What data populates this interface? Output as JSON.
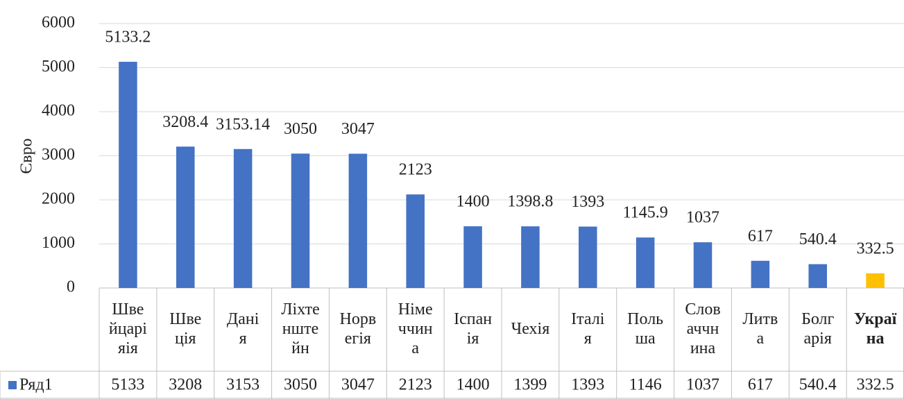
{
  "chart_data": {
    "type": "bar",
    "y_label": "Євро",
    "categories": [
      "Шве\nйцарі\nяія",
      "Шве\nція",
      "Дані\nя",
      "Ліхте\nнште\nйн",
      "Норв\nегія",
      "Німе\nччин\nа",
      "Іспан\nія",
      "Чехія",
      "Італі\nя",
      "Поль\nша",
      "Слов\nаччн\nина",
      "Литв\nа",
      "Болг\nарія",
      "Украї\nна"
    ],
    "series": [
      {
        "name": "Ряд1",
        "color": "#4472c4",
        "values": [
          5133.2,
          3208.4,
          3153.14,
          3050,
          3047,
          2123,
          1400,
          1398.8,
          1393,
          1145.9,
          1037,
          617,
          540.4,
          332.5
        ],
        "colors": [
          "#4472c4",
          "#4472c4",
          "#4472c4",
          "#4472c4",
          "#4472c4",
          "#4472c4",
          "#4472c4",
          "#4472c4",
          "#4472c4",
          "#4472c4",
          "#4472c4",
          "#4472c4",
          "#4472c4",
          "#ffc000"
        ],
        "table_labels": [
          "5133",
          "3208",
          "3153",
          "3050",
          "3047",
          "2123",
          "1400",
          "1399",
          "1393",
          "1146",
          "1037",
          "617",
          "540.4",
          "332.5"
        ]
      }
    ],
    "ylim": [
      0,
      6000
    ],
    "yticks": [
      0,
      1000,
      2000,
      3000,
      4000,
      5000,
      6000
    ],
    "grid": true
  }
}
